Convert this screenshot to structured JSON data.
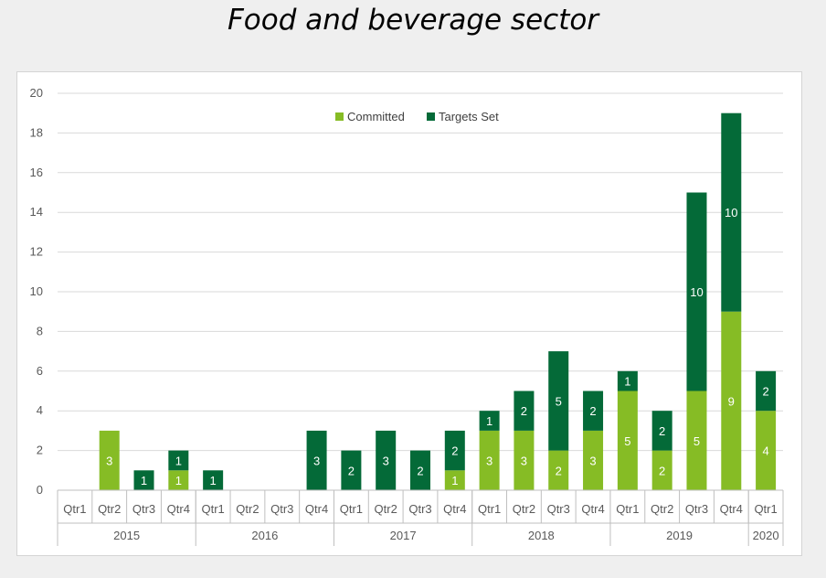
{
  "title": "Food and beverage sector",
  "colors": {
    "committed": "#86bc25",
    "targets_set": "#046a38",
    "grid": "#d9d9d9",
    "axis": "#bfbfbf"
  },
  "chart_data": {
    "type": "bar",
    "stacked": true,
    "title": "",
    "ylim": [
      0,
      20
    ],
    "yticks": [
      0,
      2,
      4,
      6,
      8,
      10,
      12,
      14,
      16,
      18,
      20
    ],
    "grid": true,
    "legend_position": "top-center",
    "categories": [
      "Qtr1",
      "Qtr2",
      "Qtr3",
      "Qtr4",
      "Qtr1",
      "Qtr2",
      "Qtr3",
      "Qtr4",
      "Qtr1",
      "Qtr2",
      "Qtr3",
      "Qtr4",
      "Qtr1",
      "Qtr2",
      "Qtr3",
      "Qtr4",
      "Qtr1",
      "Qtr2",
      "Qtr3",
      "Qtr4",
      "Qtr1"
    ],
    "groups": [
      {
        "label": "2015",
        "count": 4
      },
      {
        "label": "2016",
        "count": 4
      },
      {
        "label": "2017",
        "count": 4
      },
      {
        "label": "2018",
        "count": 4
      },
      {
        "label": "2019",
        "count": 4
      },
      {
        "label": "2020",
        "count": 1
      }
    ],
    "series": [
      {
        "name": "Committed",
        "values": [
          0,
          3,
          0,
          1,
          0,
          0,
          0,
          0,
          0,
          0,
          0,
          1,
          3,
          3,
          2,
          3,
          5,
          2,
          5,
          9,
          4
        ]
      },
      {
        "name": "Targets Set",
        "values": [
          0,
          0,
          1,
          1,
          1,
          0,
          0,
          3,
          2,
          3,
          2,
          2,
          1,
          2,
          5,
          2,
          1,
          2,
          10,
          10,
          2
        ]
      }
    ]
  }
}
